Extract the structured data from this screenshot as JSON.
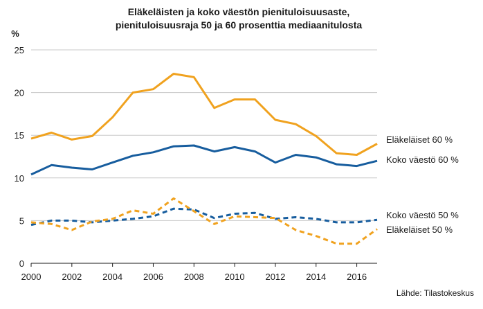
{
  "chart_data": {
    "type": "line",
    "title_lines": [
      "Eläkeläisten ja koko väestön pienituloisuusaste,",
      "pienituloisuusraja 50 ja 60 prosenttia mediaanitulosta"
    ],
    "ylabel": "%",
    "source": "Lähde: Tilastokeskus",
    "xlim": [
      2000,
      2017
    ],
    "ylim": [
      0,
      25
    ],
    "yticks": [
      0,
      5,
      10,
      15,
      20,
      25
    ],
    "xticks": [
      2000,
      2002,
      2004,
      2006,
      2008,
      2010,
      2012,
      2014,
      2016
    ],
    "grid": "horizontal",
    "x": [
      2000,
      2001,
      2002,
      2003,
      2004,
      2005,
      2006,
      2007,
      2008,
      2009,
      2010,
      2011,
      2012,
      2013,
      2014,
      2015,
      2016,
      2017
    ],
    "series": [
      {
        "name": "Eläkeläiset 60 %",
        "color": "#f0a21f",
        "style": "solid",
        "values": [
          14.6,
          15.3,
          14.5,
          14.9,
          17.1,
          20.0,
          20.4,
          22.2,
          21.8,
          18.2,
          19.2,
          19.2,
          16.8,
          16.3,
          14.9,
          12.9,
          12.7,
          14.0
        ]
      },
      {
        "name": "Koko väestö 60 %",
        "color": "#175d9e",
        "style": "solid",
        "values": [
          10.4,
          11.5,
          11.2,
          11.0,
          11.8,
          12.6,
          13.0,
          13.7,
          13.8,
          13.1,
          13.6,
          13.1,
          11.8,
          12.7,
          12.4,
          11.6,
          11.4,
          12.0
        ]
      },
      {
        "name": "Koko väestö 50 %",
        "color": "#175d9e",
        "style": "dashed",
        "values": [
          4.5,
          5.0,
          5.0,
          4.8,
          5.0,
          5.2,
          5.5,
          6.4,
          6.3,
          5.3,
          5.8,
          5.9,
          5.2,
          5.4,
          5.2,
          4.8,
          4.8,
          5.1
        ]
      },
      {
        "name": "Eläkeläiset 50 %",
        "color": "#f0a21f",
        "style": "dashed",
        "values": [
          4.8,
          4.6,
          3.9,
          4.9,
          5.2,
          6.2,
          5.8,
          7.6,
          6.1,
          4.6,
          5.5,
          5.4,
          5.3,
          3.9,
          3.2,
          2.3,
          2.3,
          4.0
        ]
      }
    ]
  }
}
